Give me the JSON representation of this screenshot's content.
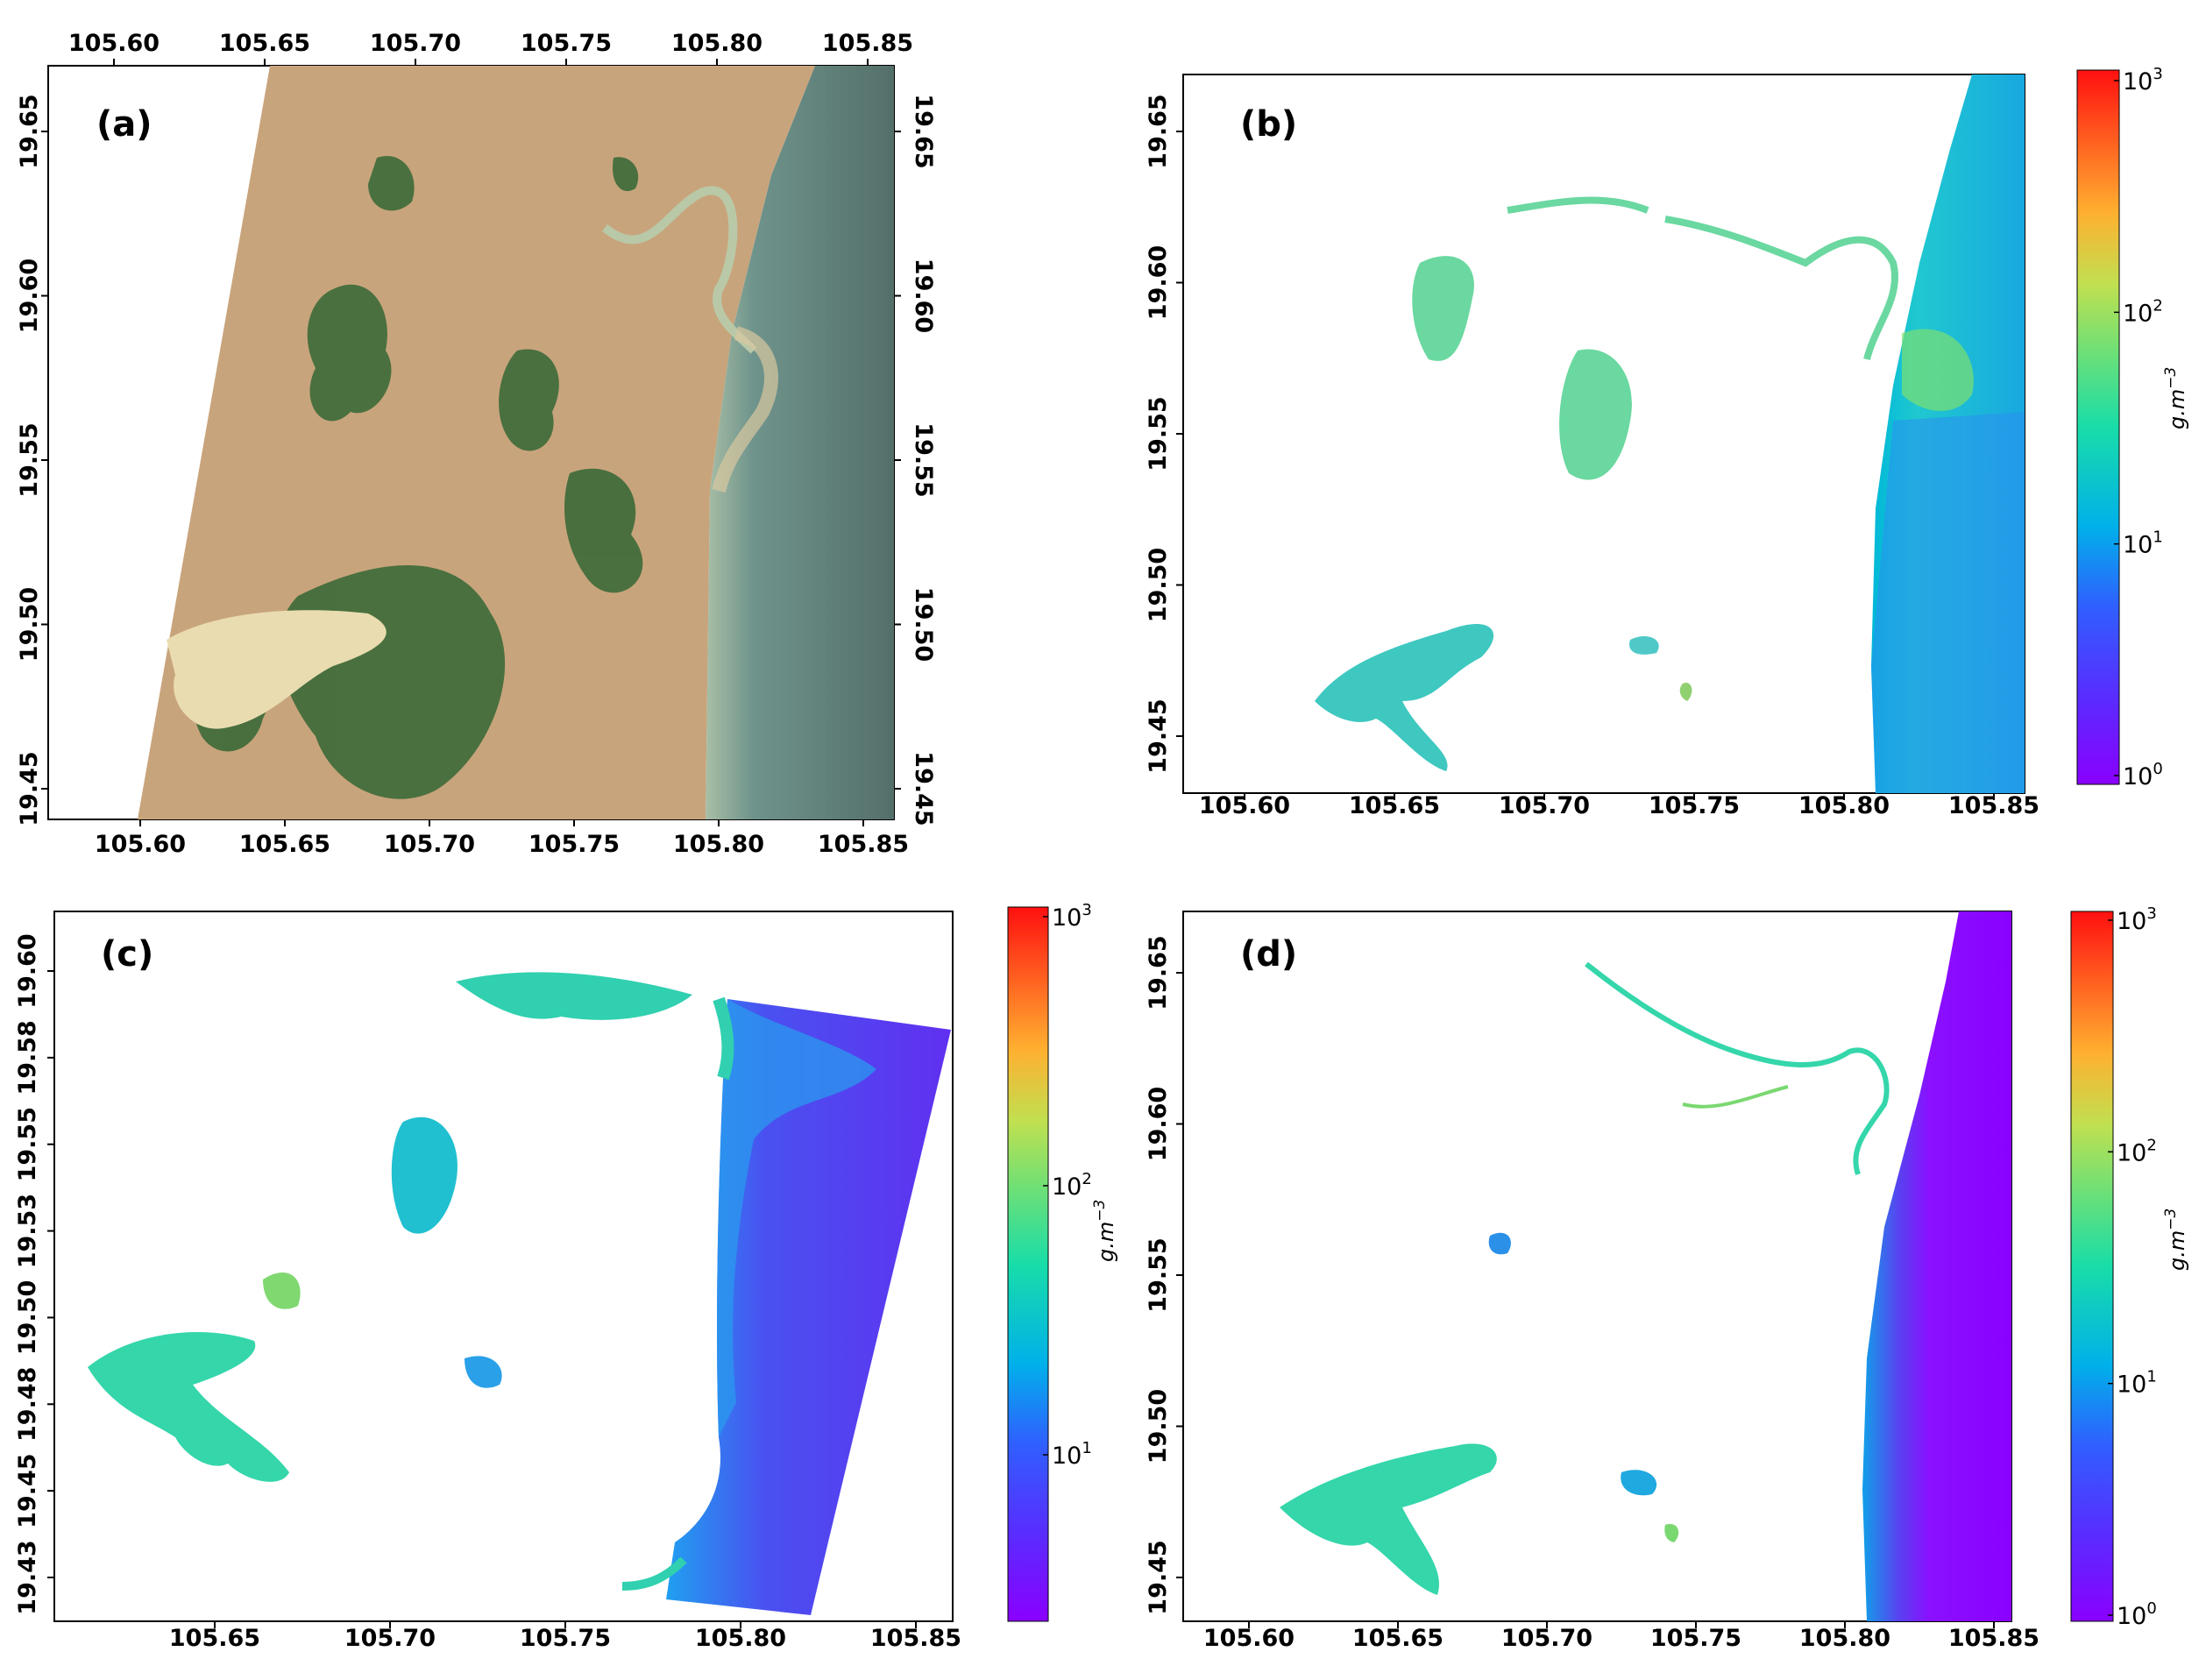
{
  "panels": [
    {
      "id": "a",
      "label": "(a)",
      "content": "true-color satellite image",
      "x_ticks": [
        "105.60",
        "105.65",
        "105.70",
        "105.75",
        "105.80",
        "105.85"
      ],
      "y_ticks": [
        "19.65",
        "19.60",
        "19.55",
        "19.50",
        "19.45"
      ],
      "y_ticks_right": [
        "19.65",
        "19.60",
        "19.55",
        "19.50",
        "19.45"
      ]
    },
    {
      "id": "b",
      "label": "(b)",
      "content": "suspended sediment concentration map",
      "x_ticks": [
        "105.60",
        "105.65",
        "105.70",
        "105.75",
        "105.80",
        "105.85"
      ],
      "y_ticks": [
        "19.65",
        "19.60",
        "19.55",
        "19.50",
        "19.45"
      ],
      "colorbar": {
        "unit": "g.m",
        "unit_sup": "−3",
        "ticks": [
          {
            "base": "10",
            "exp": "3"
          },
          {
            "base": "10",
            "exp": "2"
          },
          {
            "base": "10",
            "exp": "1"
          },
          {
            "base": "10",
            "exp": "0"
          }
        ]
      }
    },
    {
      "id": "c",
      "label": "(c)",
      "content": "suspended sediment concentration map",
      "x_ticks": [
        "105.65",
        "105.70",
        "105.75",
        "105.80",
        "105.85"
      ],
      "y_ticks": [
        "19.60",
        "19.58",
        "19.55",
        "19.53",
        "19.50",
        "19.48",
        "19.45",
        "19.43"
      ],
      "colorbar": {
        "unit": "g.m",
        "unit_sup": "−3",
        "ticks": [
          {
            "base": "10",
            "exp": "3"
          },
          {
            "base": "10",
            "exp": "2"
          },
          {
            "base": "10",
            "exp": "1"
          }
        ]
      }
    },
    {
      "id": "d",
      "label": "(d)",
      "content": "suspended sediment concentration map",
      "x_ticks": [
        "105.60",
        "105.65",
        "105.70",
        "105.75",
        "105.80",
        "105.85"
      ],
      "y_ticks": [
        "19.65",
        "19.60",
        "19.55",
        "19.50",
        "19.45"
      ],
      "colorbar": {
        "unit": "g.m",
        "unit_sup": "−3",
        "ticks": [
          {
            "base": "10",
            "exp": "3"
          },
          {
            "base": "10",
            "exp": "2"
          },
          {
            "base": "10",
            "exp": "1"
          },
          {
            "base": "10",
            "exp": "0"
          }
        ]
      }
    }
  ],
  "colors": {
    "land_sand": "#c9a77a",
    "land_green": "#3e6a38",
    "sea": "#5f7f78",
    "cmap": [
      "#8a00ff",
      "#2f60ff",
      "#00b4e6",
      "#20e0a0",
      "#a0e050",
      "#ffb030",
      "#ff2010"
    ]
  }
}
